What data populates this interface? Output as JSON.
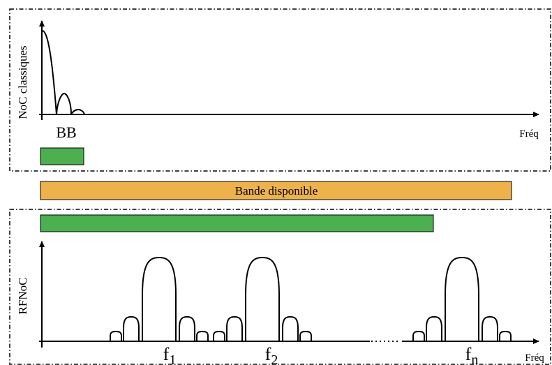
{
  "top_panel": {
    "ylabel": "NoC classiques",
    "baseband_label": "BB",
    "xlabel": "Fréq"
  },
  "band": {
    "label": "Bande disponible",
    "color": "#EDB24C"
  },
  "usage_color": "#4CAF50",
  "bottom_panel": {
    "ylabel": "RFNoC",
    "xlabel": "Fréq",
    "carriers": [
      {
        "symbol": "f",
        "subscript": "1"
      },
      {
        "symbol": "f",
        "subscript": "2"
      },
      {
        "symbol": "f",
        "subscript": "n"
      }
    ]
  }
}
